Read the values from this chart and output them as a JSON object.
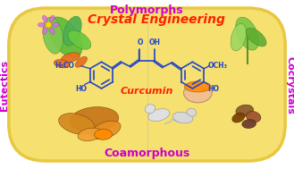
{
  "bg_color": "#F5E070",
  "border_color": "#E8C840",
  "text_polymorphs": "Polymorphs",
  "text_crystal_engineering": "Crystal Engineering",
  "text_eutectics": "Eutectics",
  "text_cocrystals": "Cocrystals",
  "text_coamorphous": "Coamorphous",
  "text_curcumin": "Curcumin",
  "label_color": "#CC00CC",
  "crystal_color": "#FF2200",
  "curcumin_color": "#FF2200",
  "structure_color": "#2244CC",
  "figsize": [
    3.29,
    1.89
  ],
  "dpi": 100
}
